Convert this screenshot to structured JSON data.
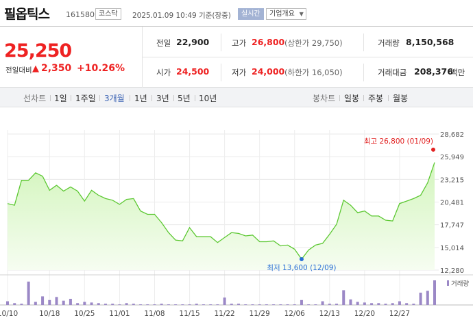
{
  "header": {
    "name": "필옵틱스",
    "code": "161580",
    "market": "코스닥",
    "datetime": "2025.01.09 10:49  기준(장중)",
    "realtime": "실시간",
    "overview": "기업개요",
    "overview_icon": "chevron-down-icon"
  },
  "summary": {
    "price": "25,250",
    "change_label": "전일대비",
    "change_arrow": "▲",
    "change_abs": "2,350",
    "change_pct": "+10.26%",
    "prev_label": "전일",
    "prev_value": "22,900",
    "open_label": "시가",
    "open_value": "24,500",
    "high_label": "고가",
    "high_value": "26,800",
    "upper_limit": "(상한가 29,750)",
    "low_label": "저가",
    "low_value": "24,000",
    "lower_limit": "(하한가 16,050)",
    "volume_label": "거래량",
    "volume_value": "8,150,568",
    "amount_label": "거래대금",
    "amount_value": "208,376",
    "amount_unit": "백만"
  },
  "periods": {
    "line_label": "선차트",
    "items": [
      "1일",
      "1주일",
      "3개월",
      "1년",
      "3년",
      "5년",
      "10년"
    ],
    "active": "3개월",
    "candle_label": "봉차트",
    "candle_items": [
      "일봉",
      "주봉",
      "월봉"
    ]
  },
  "colors": {
    "up": "#e22222",
    "line": "#5cc832",
    "area_top": "#d3f5bd",
    "area_bottom": "#f6fdf1",
    "volume": "#9b88c6",
    "low_marker": "#2a6fd6",
    "high_marker": "#e22222"
  },
  "chart_data": {
    "type": "area",
    "y_ticks": [
      "28,682",
      "25,949",
      "23,215",
      "20,481",
      "17,747",
      "15,014",
      "12,280"
    ],
    "ylim": [
      12280,
      28682
    ],
    "x_ticks": [
      "10/10",
      "10/18",
      "10/25",
      "11/01",
      "11/08",
      "11/15",
      "11/22",
      "11/29",
      "12/06",
      "12/13",
      "12/20",
      "12/27"
    ],
    "x_tick_index": [
      0,
      6,
      11,
      16,
      21,
      26,
      31,
      36,
      41,
      46,
      51,
      56
    ],
    "grid": true,
    "series": [
      {
        "values": [
          20300,
          20100,
          23100,
          23100,
          24000,
          23600,
          21900,
          22500,
          21800,
          22300,
          21800,
          20600,
          21900,
          21300,
          20900,
          20700,
          20200,
          20800,
          20900,
          19400,
          19000,
          19000,
          18000,
          16800,
          15900,
          15800,
          17400,
          16300,
          16300,
          16300,
          15600,
          16200,
          16800,
          16700,
          16400,
          16500,
          15700,
          15700,
          15800,
          15200,
          15300,
          14800,
          13600,
          14700,
          15300,
          15500,
          16600,
          17800,
          20700,
          20100,
          19200,
          19400,
          18800,
          18800,
          18300,
          18200,
          20300,
          20600,
          20900,
          21300,
          22800,
          25250
        ]
      }
    ],
    "high_label": "최고 26,800 (01/09)",
    "high_value": 26800,
    "low_label": "최저 13,600 (12/09)",
    "low_value": 13600,
    "low_index": 42,
    "volume_label": "거래량",
    "volume": [
      6,
      3,
      2,
      38,
      5,
      14,
      8,
      13,
      7,
      10,
      3,
      5,
      4,
      3,
      2,
      2,
      1,
      3,
      2,
      1,
      1,
      1,
      2,
      1,
      1,
      1,
      1,
      2,
      1,
      1,
      1,
      12,
      2,
      2,
      1,
      1,
      1,
      1,
      1,
      1,
      1,
      1,
      8,
      1,
      1,
      6,
      2,
      2,
      24,
      9,
      5,
      4,
      3,
      3,
      2,
      3,
      6,
      3,
      2,
      20,
      23,
      40
    ]
  }
}
